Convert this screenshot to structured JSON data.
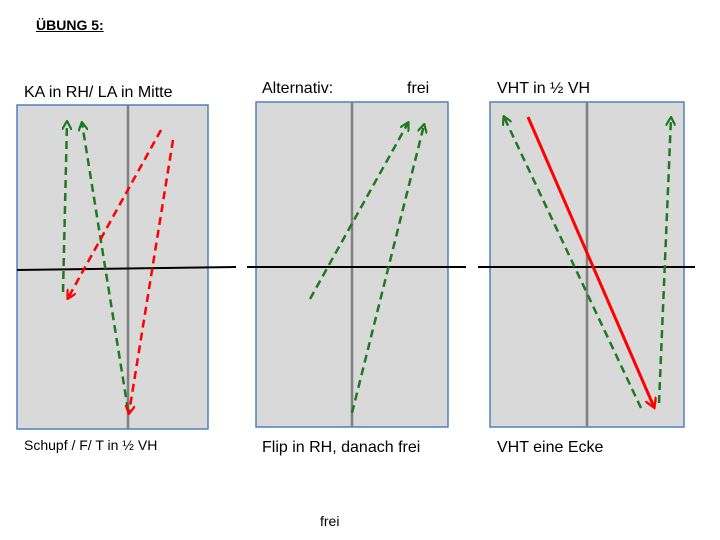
{
  "title": "ÜBUNG 5:",
  "panels": [
    {
      "top_label": "KA in RH/ LA in Mitte",
      "bottom_label": "Schupf / F/ T in ½ VH"
    },
    {
      "top_label_left": "Alternativ:",
      "top_label_right": "frei",
      "bottom_label": "Flip in RH, danach frei"
    },
    {
      "top_label": "VHT in ½ VH",
      "bottom_label": "VHT eine Ecke"
    }
  ],
  "footer": "frei",
  "colors": {
    "table_fill": "#d9d9d9",
    "table_border": "#4f81bd",
    "center_line": "#808080",
    "net": "#000000",
    "green_arrow": "#1f7a1f",
    "red_arrow": "#ff0000"
  }
}
